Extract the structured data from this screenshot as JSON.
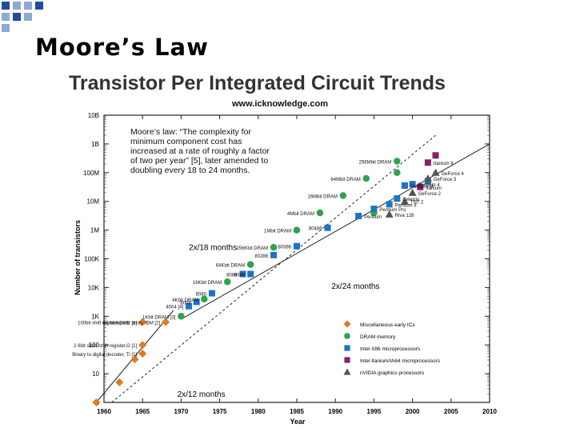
{
  "slide": {
    "title": "Moore’s Law",
    "accent_colors": [
      "#1f4e9c",
      "#8fa9d6"
    ]
  },
  "chart_data": {
    "type": "scatter",
    "title": "Transistor Per Integrated Circuit Trends",
    "source": "www.icknowledge.com",
    "xlabel": "Year",
    "ylabel": "Number of transistors",
    "xlim": [
      1960,
      2010
    ],
    "ylim_log10": [
      0,
      10
    ],
    "y_scale": "log",
    "x_ticks": [
      1960,
      1965,
      1970,
      1975,
      1980,
      1985,
      1990,
      1995,
      2000,
      2005,
      2010
    ],
    "y_ticks": [
      {
        "label": "1",
        "log10": 0
      },
      {
        "label": "10",
        "log10": 1
      },
      {
        "label": "100",
        "log10": 2
      },
      {
        "label": "1K",
        "log10": 3
      },
      {
        "label": "10K",
        "log10": 4
      },
      {
        "label": "100K",
        "log10": 5
      },
      {
        "label": "1M",
        "log10": 6
      },
      {
        "label": "10M",
        "log10": 7
      },
      {
        "label": "100M",
        "log10": 8
      },
      {
        "label": "1B",
        "log10": 9
      },
      {
        "label": "10B",
        "log10": 10
      }
    ],
    "annotation": "Moore’s law: “The complexity for minimum component cost has increased at a rate of roughly a factor of two per year” [5], later amended to doubling every 18 to 24 months.",
    "annotation_lines": [
      "Moore’s law: “The complexity for",
      "minimum component cost has",
      "increased at a rate of roughly a factor",
      "of two per year” [5], later amended to",
      "doubling every 18 to 24 months."
    ],
    "trend_lines": [
      {
        "label": "2x/12 months",
        "from": [
          1959,
          0
        ],
        "to": [
          1969,
          3.2
        ]
      },
      {
        "label": "2x/18 months",
        "from": [
          1961,
          0
        ],
        "to": [
          2003,
          9.3
        ]
      },
      {
        "label": "2x/24 months",
        "from": [
          1970,
          2.9
        ],
        "to": [
          2010,
          9.0
        ]
      }
    ],
    "series": [
      {
        "name": "Miscellaneous early ICs",
        "color": "#e07a1f",
        "marker": "diamond",
        "points": [
          {
            "x": 1959,
            "y": 0,
            "label": ""
          },
          {
            "x": 1962,
            "y": 0.7,
            "label": ""
          },
          {
            "x": 1964,
            "y": 1.5,
            "label": ""
          },
          {
            "x": 1965,
            "y": 2.0,
            "label": "2 6bit static shift register,G [1]"
          },
          {
            "x": 1965,
            "y": 2.8,
            "label": "100bit shift register,GME [1]"
          },
          {
            "x": 1968,
            "y": 2.8,
            "label": "64 bit bipolar array, IBM [2]"
          },
          {
            "x": 1965,
            "y": 1.7,
            "label": "Binary to digital decoder, TI [1]"
          }
        ]
      },
      {
        "name": "DRAM memory",
        "color": "#2ea34b",
        "marker": "circle",
        "points": [
          {
            "x": 1970,
            "y": 3.0,
            "label": "1Kbit DRAM [3]"
          },
          {
            "x": 1973,
            "y": 3.6,
            "label": "4Kbit DRAM"
          },
          {
            "x": 1976,
            "y": 4.2,
            "label": "16Kbit DRAM"
          },
          {
            "x": 1979,
            "y": 4.8,
            "label": "64Kbit DRAM"
          },
          {
            "x": 1982,
            "y": 5.4,
            "label": "256Kbit DRAM"
          },
          {
            "x": 1985,
            "y": 6.0,
            "label": "1Mbit DRAM"
          },
          {
            "x": 1988,
            "y": 6.6,
            "label": "4Mbit DRAM"
          },
          {
            "x": 1991,
            "y": 7.2,
            "label": "16Mbit DRAM"
          },
          {
            "x": 1994,
            "y": 7.8,
            "label": "64Mbit DRAM"
          },
          {
            "x": 1998,
            "y": 8.4,
            "label": "256Mbit DRAM"
          },
          {
            "x": 1995,
            "y": 6.6,
            "label": ""
          },
          {
            "x": 1998,
            "y": 8.0,
            "label": ""
          }
        ]
      },
      {
        "name": "Intel X86 microprocessors",
        "color": "#1e74c4",
        "marker": "square",
        "points": [
          {
            "x": 1971,
            "y": 3.35,
            "label": "4004 [4]"
          },
          {
            "x": 1972,
            "y": 3.5,
            "label": "8008"
          },
          {
            "x": 1974,
            "y": 3.8,
            "label": "8080"
          },
          {
            "x": 1978,
            "y": 4.47,
            "label": "8086"
          },
          {
            "x": 1979,
            "y": 4.47,
            "label": "8088"
          },
          {
            "x": 1982,
            "y": 5.13,
            "label": "80286"
          },
          {
            "x": 1985,
            "y": 5.44,
            "label": "80386"
          },
          {
            "x": 1989,
            "y": 6.08,
            "label": "80486"
          },
          {
            "x": 1993,
            "y": 6.49,
            "label": "Pentium"
          },
          {
            "x": 1995,
            "y": 6.74,
            "label": "Pentium Pro"
          },
          {
            "x": 1997,
            "y": 6.9,
            "label": "Pentium II"
          },
          {
            "x": 1998,
            "y": 7.1,
            "label": "Celeron"
          },
          {
            "x": 1999,
            "y": 7.55,
            "label": "Pentium III"
          },
          {
            "x": 2000,
            "y": 7.6,
            "label": "Pentium 4"
          },
          {
            "x": 2002,
            "y": 7.7,
            "label": ""
          }
        ]
      },
      {
        "name": "Intel Itanium/IA64 microprocessors",
        "color": "#8a1f6a",
        "marker": "square",
        "points": [
          {
            "x": 2001,
            "y": 7.5,
            "label": "Itanium"
          },
          {
            "x": 2002,
            "y": 8.35,
            "label": "Itanium II"
          },
          {
            "x": 2003,
            "y": 8.6,
            "label": ""
          }
        ]
      },
      {
        "name": "nVIDIA graphics processors",
        "color": "#555555",
        "marker": "triangle",
        "points": [
          {
            "x": 1997,
            "y": 6.55,
            "label": "Riva 128"
          },
          {
            "x": 1999,
            "y": 7.0,
            "label": "TNT 2"
          },
          {
            "x": 2000,
            "y": 7.3,
            "label": "GeForce 2"
          },
          {
            "x": 2002,
            "y": 7.8,
            "label": "GeForce 3"
          },
          {
            "x": 2003,
            "y": 8.0,
            "label": "GeForce 4"
          }
        ]
      }
    ],
    "legend_placement": "bottom-right",
    "legend": [
      {
        "label": "Miscellaneous early ICs",
        "color": "#e07a1f",
        "marker": "diamond"
      },
      {
        "label": "DRAM memory",
        "color": "#2ea34b",
        "marker": "circle"
      },
      {
        "label": "Intel X86 microprocessors",
        "color": "#1e74c4",
        "marker": "square"
      },
      {
        "label": "Intel Itanium/IA64 microprocessors",
        "color": "#8a1f6a",
        "marker": "square"
      },
      {
        "label": "nVIDIA graphics processors",
        "color": "#555555",
        "marker": "triangle"
      }
    ]
  }
}
